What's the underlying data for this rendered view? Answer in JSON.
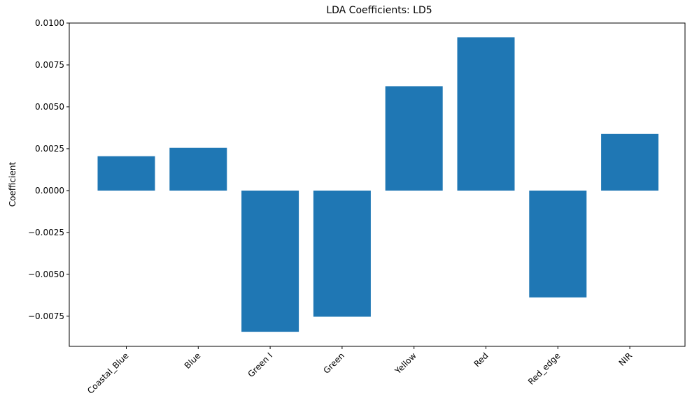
{
  "chart_data": {
    "type": "bar",
    "title": "LDA Coefficients: LD5",
    "xlabel": "",
    "ylabel": "Coefficient",
    "categories": [
      "Coastal_Blue",
      "Blue",
      "Green I",
      "Green",
      "Yellow",
      "Red",
      "Red_edge",
      "NIR"
    ],
    "values": [
      0.00205,
      0.00255,
      -0.00843,
      -0.00753,
      0.00623,
      0.00915,
      -0.00638,
      0.00338
    ],
    "ylim": [
      -0.0093,
      0.01
    ],
    "yticks": [
      -0.0075,
      -0.005,
      -0.0025,
      0.0,
      0.0025,
      0.005,
      0.0075,
      0.01
    ],
    "ytick_labels": [
      "−0.0075",
      "−0.0050",
      "−0.0025",
      "0.0000",
      "0.0025",
      "0.0050",
      "0.0075",
      "0.0100"
    ],
    "bar_color": "#1f77b4",
    "grid": false,
    "xtick_rotation": 45
  }
}
